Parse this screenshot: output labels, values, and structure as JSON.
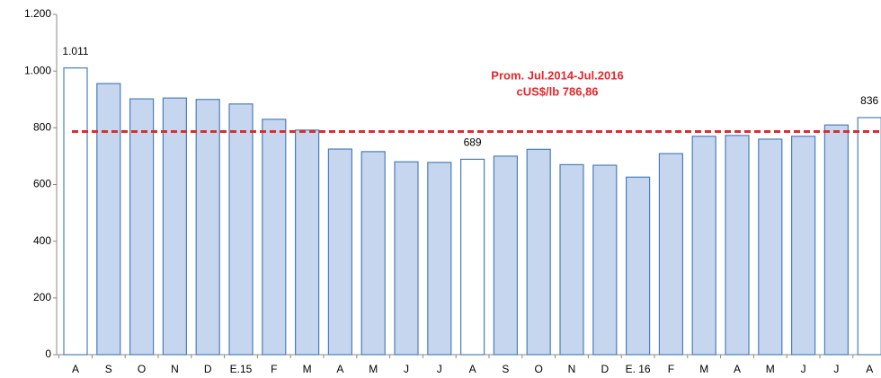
{
  "chart_data": {
    "type": "bar",
    "categories": [
      "A",
      "S",
      "O",
      "N",
      "D",
      "E.15",
      "F",
      "M",
      "A",
      "M",
      "J",
      "J",
      "A",
      "S",
      "O",
      "N",
      "D",
      "E. 16",
      "F",
      "M",
      "A",
      "M",
      "J",
      "J",
      "A"
    ],
    "values": [
      1011,
      956,
      902,
      905,
      900,
      884,
      830,
      792,
      725,
      716,
      680,
      678,
      689,
      700,
      724,
      670,
      668,
      626,
      709,
      770,
      773,
      760,
      770,
      810,
      836
    ],
    "value_labels": [
      "1.011",
      null,
      null,
      null,
      null,
      null,
      null,
      null,
      null,
      null,
      null,
      null,
      "689",
      null,
      null,
      null,
      null,
      null,
      null,
      null,
      null,
      null,
      null,
      null,
      "836"
    ],
    "color": "#c6d6ef",
    "edge_color": "#4a7ebb",
    "highlight_color": "#ffffff",
    "highlight_indices": [
      0,
      12,
      24
    ],
    "ylim": [
      0,
      1200
    ],
    "yticks": [
      0,
      200,
      400,
      600,
      800,
      {
        "value": 1000,
        "label": "1.000"
      },
      {
        "value": 1200,
        "label": "1.200"
      }
    ],
    "grid": false,
    "reference_line": {
      "value": 786.86,
      "color": "#d9302c"
    },
    "annotation": [
      "Prom. Jul.2014-Jul.2016",
      "cUS$/lb 786,86"
    ]
  }
}
